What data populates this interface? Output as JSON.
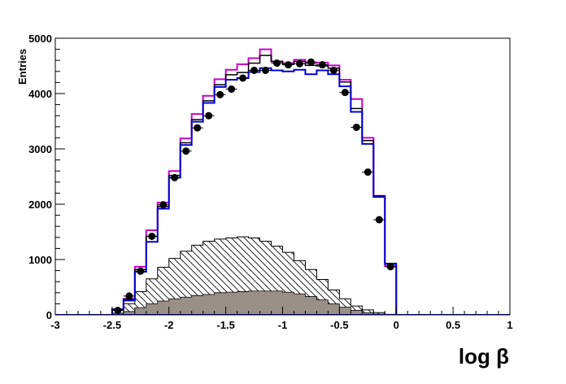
{
  "chart_data": {
    "type": "histogram",
    "ylabel": "Entries",
    "xlabel": "log β",
    "xlim": [
      -3,
      1
    ],
    "ylim": [
      0,
      5000
    ],
    "x_ticks": [
      "-3",
      "-2.5",
      "-2",
      "-1.5",
      "-1",
      "-0.5",
      "0",
      "0.5",
      "1"
    ],
    "y_ticks": [
      "0",
      "1000",
      "2000",
      "3000",
      "4000",
      "5000"
    ],
    "bin_edges": [
      -2.5,
      -2.4,
      -2.3,
      -2.2,
      -2.1,
      -2.0,
      -1.9,
      -1.8,
      -1.7,
      -1.6,
      -1.5,
      -1.4,
      -1.3,
      -1.2,
      -1.1,
      -1.0,
      -0.9,
      -0.8,
      -0.7,
      -0.6,
      -0.5,
      -0.4,
      -0.3,
      -0.2,
      -0.1,
      0.0
    ],
    "colors": {
      "magenta": "#cc00cc",
      "blue": "#0000cc",
      "black": "#000000",
      "gray_fill": "#9a8f87"
    },
    "series": [
      {
        "role": "magenta_line",
        "values": [
          100,
          290,
          870,
          1530,
          2030,
          2600,
          3190,
          3630,
          3960,
          4260,
          4430,
          4530,
          4640,
          4800,
          4580,
          4550,
          4610,
          4550,
          4560,
          4510,
          4250,
          3900,
          3200,
          2150,
          880
        ]
      },
      {
        "role": "black_line",
        "values": [
          100,
          280,
          820,
          1420,
          1960,
          2520,
          3110,
          3530,
          3870,
          4160,
          4340,
          4380,
          4550,
          4690,
          4580,
          4530,
          4580,
          4510,
          4500,
          4460,
          4210,
          3730,
          3150,
          2150,
          930
        ]
      },
      {
        "role": "blue_line",
        "values": [
          100,
          260,
          780,
          1320,
          1920,
          2480,
          3070,
          3490,
          3830,
          4120,
          4250,
          4280,
          4390,
          4460,
          4420,
          4400,
          4430,
          4350,
          4420,
          4350,
          4130,
          3670,
          3090,
          2130,
          920
        ]
      },
      {
        "role": "hatched",
        "values": [
          30,
          200,
          420,
          650,
          860,
          1020,
          1150,
          1260,
          1330,
          1370,
          1390,
          1410,
          1390,
          1330,
          1240,
          1130,
          980,
          820,
          640,
          450,
          290,
          160,
          90,
          40,
          10
        ]
      },
      {
        "role": "gray_filled",
        "values": [
          10,
          60,
          130,
          200,
          250,
          290,
          320,
          350,
          370,
          400,
          410,
          420,
          430,
          430,
          430,
          410,
          380,
          330,
          270,
          200,
          140,
          80,
          40,
          15,
          5
        ]
      }
    ],
    "points": {
      "x": [
        -2.45,
        -2.35,
        -2.25,
        -2.15,
        -2.05,
        -1.95,
        -1.85,
        -1.75,
        -1.65,
        -1.55,
        -1.45,
        -1.35,
        -1.25,
        -1.15,
        -1.05,
        -0.95,
        -0.85,
        -0.75,
        -0.65,
        -0.55,
        -0.45,
        -0.35,
        -0.25,
        -0.15,
        -0.05
      ],
      "y": [
        80,
        340,
        790,
        1420,
        1990,
        2480,
        2960,
        3380,
        3600,
        3980,
        4080,
        4280,
        4420,
        4420,
        4550,
        4520,
        4540,
        4570,
        4520,
        4420,
        4020,
        3390,
        2580,
        1720,
        870
      ]
    }
  }
}
